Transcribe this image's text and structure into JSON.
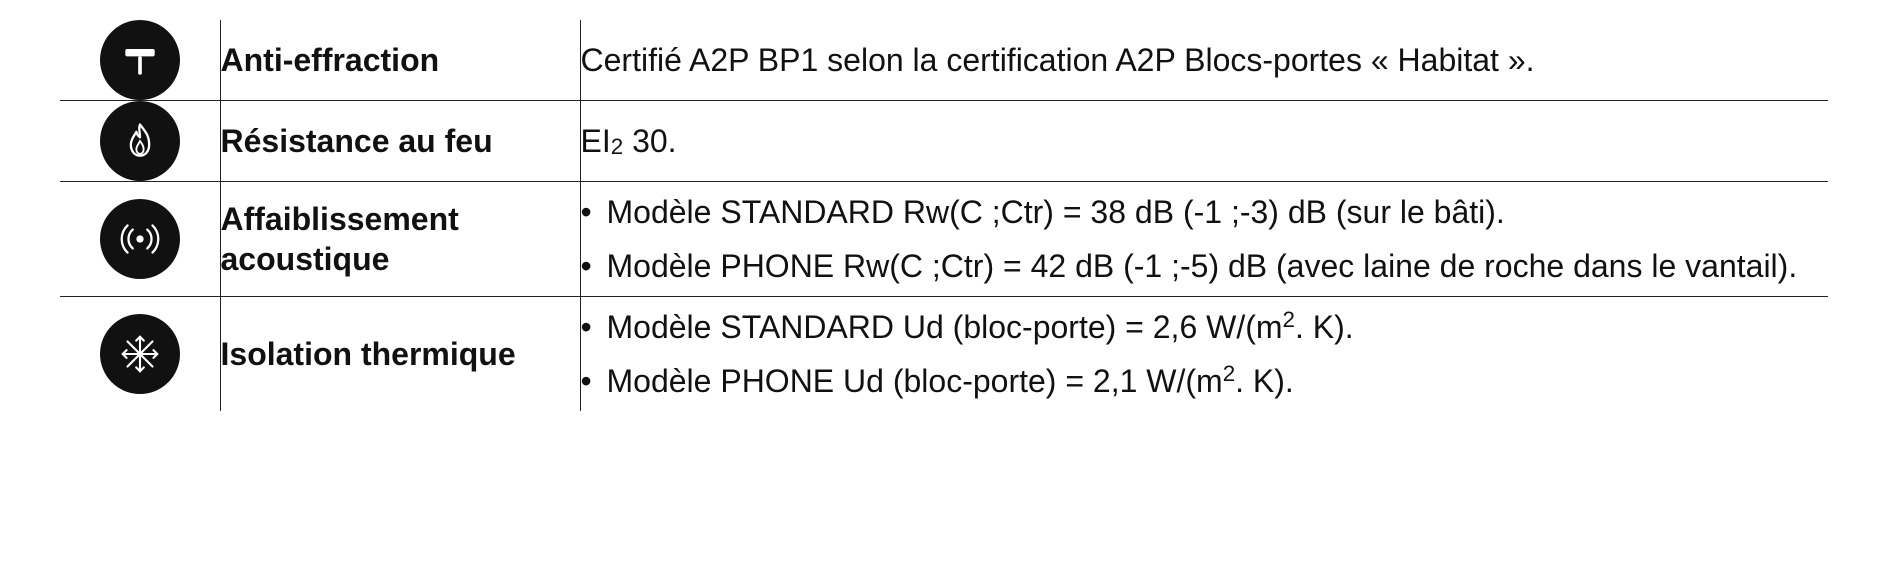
{
  "rows": [
    {
      "icon": "hammer",
      "label": "Anti-effraction",
      "value_type": "text",
      "value": "Certifié A2P BP1 selon la certification A2P Blocs-portes « Habitat »."
    },
    {
      "icon": "flame",
      "label": "Résistance au feu",
      "value_type": "html",
      "value_html": "EI<span class=\"sub2\">2</span> 30."
    },
    {
      "icon": "sound",
      "label": "Affaiblissement acoustique",
      "value_type": "bullets",
      "bullets": [
        "Modèle STANDARD Rw(C ;Ctr) = 38 dB (-1 ;-3) dB (sur le bâti).",
        "Modèle PHONE Rw(C ;Ctr) = 42 dB (-1 ;-5) dB (avec laine de roche dans le vantail)."
      ]
    },
    {
      "icon": "snowflake",
      "label": "Isolation thermique",
      "value_type": "bullets_html",
      "bullets_html": [
        "Modèle STANDARD Ud (bloc-porte) = 2,6 W/(m<span class=\"sup2\">2</span>. K).",
        "Modèle PHONE Ud (bloc-porte) = 2,1 W/(m<span class=\"sup2\">2</span>. K)."
      ]
    }
  ],
  "styles": {
    "icon_bg": "#111111",
    "icon_stroke": "#ffffff",
    "text_color": "#111111",
    "border_color": "#222222",
    "label_fontsize": 32,
    "value_fontsize": 32,
    "icon_diameter": 80
  }
}
